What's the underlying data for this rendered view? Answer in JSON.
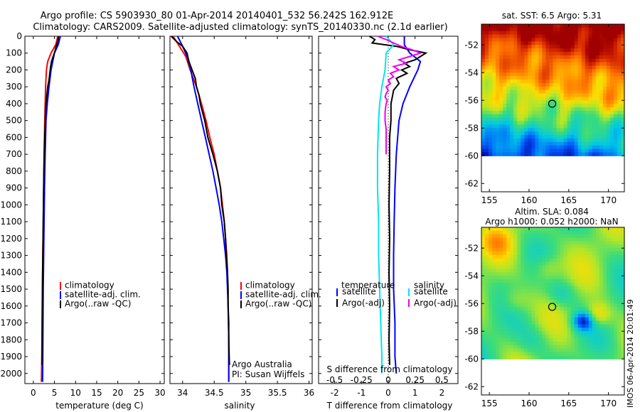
{
  "header": {
    "line1": "Argo profile: CS 5903930_80 01-Apr-2014 20140401_532 56.242S 162.912E",
    "line2": "Climatology: CARS2009. Satellite-adjusted climatology: synTS_20140330.nc (2.1d earlier)"
  },
  "colors": {
    "climatology": "#ff0000",
    "satellite": "#0000ff",
    "argo": "#000000",
    "salinity_satellite": "#00e5ee",
    "salinity_argo": "#ee00ee"
  },
  "depth_ticks": [
    "0",
    "100",
    "200",
    "300",
    "400",
    "500",
    "600",
    "700",
    "800",
    "900",
    "1000",
    "1100",
    "1200",
    "1300",
    "1400",
    "1500",
    "1600",
    "1700",
    "1800",
    "1900",
    "2000"
  ],
  "chart_data": [
    {
      "type": "line",
      "name": "temperature-profile",
      "xlabel": "temperature (deg C)",
      "xticks": [
        "0",
        "5",
        "10",
        "15",
        "20",
        "25",
        "30"
      ],
      "xlim": [
        -2,
        31
      ],
      "ylim": [
        2060,
        0
      ],
      "legend": [
        "climatology",
        "satellite-adj. clim.",
        "Argo(..raw -QC)"
      ],
      "series": [
        {
          "name": "climatology",
          "color": "#ff0000",
          "depth": [
            0,
            50,
            100,
            150,
            200,
            300,
            400,
            500,
            700,
            900,
            1100,
            1300,
            1500,
            1700,
            1900,
            2050
          ],
          "values": [
            5.8,
            5.3,
            4.2,
            3.4,
            3.1,
            2.9,
            2.8,
            2.7,
            2.55,
            2.45,
            2.35,
            2.25,
            2.15,
            2.05,
            2.0,
            1.9
          ]
        },
        {
          "name": "satellite-adj. clim.",
          "color": "#0000ff",
          "depth": [
            0,
            50,
            100,
            150,
            200,
            300,
            400,
            500,
            700,
            900,
            1100,
            1300,
            1500,
            1700,
            1900,
            2050
          ],
          "values": [
            6.4,
            5.9,
            5.0,
            4.6,
            4.2,
            3.7,
            3.3,
            3.0,
            2.8,
            2.65,
            2.55,
            2.45,
            2.35,
            2.3,
            2.25,
            2.2
          ]
        },
        {
          "name": "Argo(..raw -QC)",
          "color": "#000000",
          "depth": [
            0,
            30,
            60,
            90,
            120,
            150,
            180,
            220,
            260,
            300,
            350,
            400,
            450,
            500,
            600,
            700,
            800,
            1000,
            1200,
            1400,
            1600,
            1800,
            1950
          ],
          "values": [
            6.0,
            5.8,
            5.4,
            5.1,
            4.7,
            4.3,
            4.1,
            3.9,
            3.7,
            3.4,
            3.2,
            3.0,
            2.9,
            2.85,
            2.7,
            2.6,
            2.5,
            2.4,
            2.3,
            2.2,
            2.15,
            2.1,
            2.05
          ]
        }
      ]
    },
    {
      "type": "line",
      "name": "salinity-profile",
      "xlabel": "salinity",
      "xticks": [
        "34",
        "34.5",
        "35",
        "35.5",
        "36"
      ],
      "xlim": [
        33.8,
        36.05
      ],
      "ylim": [
        2060,
        0
      ],
      "legend": [
        "climatology",
        "satellite-adj. clim.",
        "Argo(..raw -QC)"
      ],
      "annotation": [
        "Argo Australia",
        "PI: Susan Wijffels"
      ],
      "series": [
        {
          "name": "climatology",
          "color": "#ff0000",
          "depth": [
            0,
            60,
            120,
            200,
            300,
            400,
            500,
            600,
            700,
            800,
            900,
            1000,
            1100,
            1200,
            1300,
            1400,
            1600,
            1800,
            2050
          ],
          "values": [
            33.85,
            33.95,
            34.05,
            34.12,
            34.22,
            34.3,
            34.37,
            34.43,
            34.5,
            34.55,
            34.6,
            34.63,
            34.66,
            34.68,
            34.7,
            34.71,
            34.72,
            34.73,
            34.73
          ]
        },
        {
          "name": "satellite-adj. clim.",
          "color": "#0000ff",
          "depth": [
            0,
            60,
            120,
            200,
            300,
            400,
            500,
            600,
            700,
            800,
            900,
            1000,
            1100,
            1200,
            1300,
            1400,
            1600,
            1800,
            2050
          ],
          "values": [
            33.92,
            34.0,
            34.07,
            34.13,
            34.18,
            34.24,
            34.3,
            34.36,
            34.42,
            34.48,
            34.53,
            34.58,
            34.62,
            34.65,
            34.68,
            34.7,
            34.72,
            34.73,
            34.73
          ]
        },
        {
          "name": "Argo(..raw -QC)",
          "color": "#000000",
          "depth": [
            0,
            30,
            60,
            100,
            150,
            200,
            250,
            300,
            350,
            400,
            500,
            600,
            700,
            800,
            900,
            1000,
            1100,
            1200,
            1300,
            1400,
            1500,
            1600,
            1700,
            1800,
            1950
          ],
          "values": [
            33.82,
            33.9,
            34.0,
            34.07,
            34.1,
            34.15,
            34.2,
            34.22,
            34.26,
            34.28,
            34.35,
            34.4,
            34.48,
            34.55,
            34.6,
            34.62,
            34.66,
            34.68,
            34.69,
            34.71,
            34.72,
            34.72,
            34.73,
            34.73,
            34.74
          ]
        }
      ]
    },
    {
      "type": "line",
      "name": "difference-profile",
      "xlabel": "T difference from climatology",
      "xlabel_top": "S difference from climatology",
      "xticks": [
        "-2",
        "-1",
        "0",
        "1",
        "2"
      ],
      "xticks_top": [
        "-0.5",
        "-0.25",
        "0",
        "0.25",
        "0.5"
      ],
      "xlim": [
        -2.6,
        2.6
      ],
      "ylim": [
        2060,
        0
      ],
      "legend_temperature_title": "temperature",
      "legend_salinity_title": "salinity",
      "legend_temperature": [
        "satellite",
        "Argo(-adj)"
      ],
      "legend_salinity": [
        "satellite",
        "Argo(-adj)"
      ],
      "series": [
        {
          "name": "satellite",
          "color": "#0000ff",
          "depth": [
            0,
            50,
            100,
            150,
            200,
            300,
            400,
            500,
            700,
            900,
            1100,
            1300,
            1500,
            1700,
            1900,
            2000
          ],
          "values": [
            0.6,
            0.6,
            0.8,
            1.2,
            1.1,
            0.8,
            0.55,
            0.4,
            0.3,
            0.25,
            0.22,
            0.2,
            0.2,
            0.25,
            0.25,
            0.3
          ]
        },
        {
          "name": "Argo(-adj)",
          "color": "#000000",
          "depth": [
            0,
            20,
            40,
            60,
            80,
            100,
            120,
            140,
            160,
            180,
            200,
            220,
            250,
            280,
            320,
            360,
            400,
            500,
            600,
            800,
            1000,
            1200,
            1400,
            1600,
            1800,
            1950
          ],
          "values": [
            -0.7,
            -0.5,
            -0.6,
            0.3,
            0.8,
            1.4,
            1.2,
            1.0,
            0.6,
            0.8,
            0.5,
            0.7,
            0.3,
            0.4,
            0.2,
            0.15,
            0.1,
            0.1,
            0.05,
            0.05,
            0.03,
            0.05,
            0.03,
            0.05,
            0.03,
            0.05
          ]
        },
        {
          "name": "satellite",
          "color": "#00e5ee",
          "depth": [
            0,
            50,
            100,
            200,
            300,
            400,
            500,
            700,
            900,
            1100,
            1300,
            1500,
            1700,
            1900,
            2000
          ],
          "values": [
            -0.02,
            0.05,
            -0.02,
            -0.03,
            -0.06,
            -0.08,
            -0.09,
            -0.1,
            -0.1,
            -0.09,
            -0.09,
            -0.08,
            -0.07,
            -0.06,
            -0.06
          ]
        },
        {
          "name": "Argo(-adj)",
          "color": "#ee00ee",
          "depth": [
            0,
            20,
            40,
            60,
            80,
            100,
            120,
            140,
            160,
            180,
            200,
            220,
            240,
            260,
            280,
            300,
            320,
            340,
            360,
            380,
            400,
            450,
            500,
            550,
            600,
            650,
            700
          ],
          "values": [
            -0.1,
            -0.02,
            0.05,
            0.12,
            0.22,
            0.3,
            0.2,
            0.1,
            0.17,
            0.05,
            0.1,
            0.02,
            0.05,
            0.0,
            0.02,
            -0.02,
            0.0,
            -0.02,
            -0.03,
            -0.01,
            -0.02,
            -0.03,
            -0.03,
            -0.02,
            -0.02,
            -0.02,
            -0.02
          ]
        }
      ]
    },
    {
      "type": "heatmap",
      "name": "sst-map",
      "title": "sat. SST: 6.5 Argo: 5.31",
      "xticks": [
        "155",
        "160",
        "165",
        "170"
      ],
      "yticks": [
        "-52",
        "-54",
        "-56",
        "-58",
        "-60",
        "-62"
      ],
      "xlim": [
        154,
        172
      ],
      "ylim": [
        -62.6,
        -50.5
      ],
      "marker": {
        "lon": 162.912,
        "lat": -56.242
      }
    },
    {
      "type": "heatmap",
      "name": "sla-map",
      "title": [
        "Altim. SLA: 0.084",
        "Argo h1000: 0.052 h2000: NaN"
      ],
      "xticks": [
        "155",
        "160",
        "165",
        "170"
      ],
      "yticks": [
        "-52",
        "-54",
        "-56",
        "-58",
        "-60",
        "-62"
      ],
      "xlim": [
        154,
        172
      ],
      "ylim": [
        -62.6,
        -50.5
      ],
      "marker": {
        "lon": 162.912,
        "lat": -56.242
      }
    }
  ],
  "stamp": "IMOS 06-Apr-2014 20:01:49"
}
